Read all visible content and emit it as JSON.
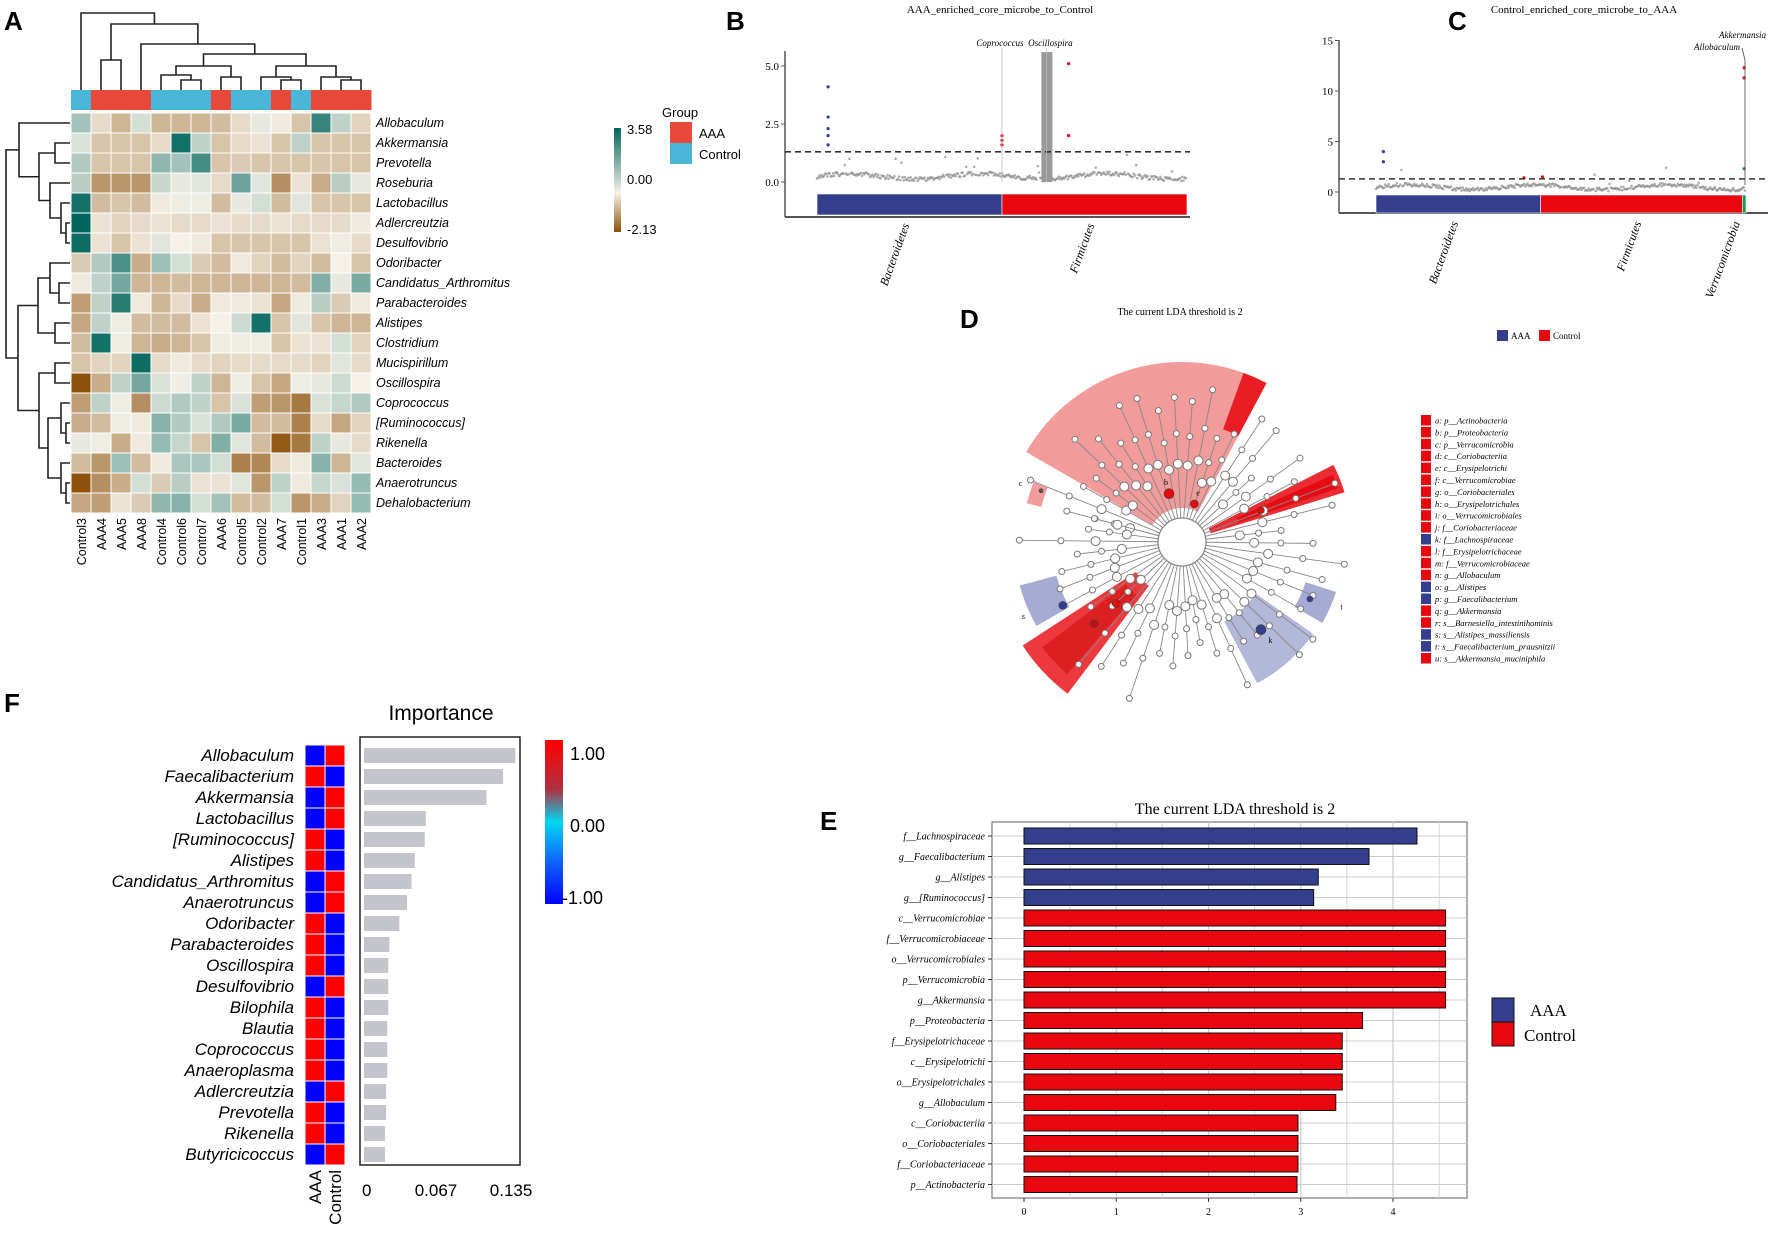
{
  "panel_letters": {
    "A": "A",
    "B": "B",
    "C": "C",
    "D": "D",
    "E": "E",
    "F": "F"
  },
  "chart_data": [
    {
      "type": "heatmap",
      "panel": "A",
      "samples": [
        "Control3",
        "AAA4",
        "AAA5",
        "AAA8",
        "Control4",
        "Control6",
        "Control7",
        "AAA6",
        "Control5",
        "Control2",
        "AAA7",
        "Control1",
        "AAA3",
        "AAA1",
        "AAA2"
      ],
      "sample_groups": [
        "Control",
        "AAA",
        "AAA",
        "AAA",
        "Control",
        "Control",
        "Control",
        "AAA",
        "Control",
        "Control",
        "AAA",
        "Control",
        "AAA",
        "AAA",
        "AAA"
      ],
      "taxa": [
        "Allobaculum",
        "Akkermansia",
        "Prevotella",
        "Roseburia",
        "Lactobacillus",
        "Adlercreutzia",
        "Desulfovibrio",
        "Odoribacter",
        "Candidatus_Arthromitus",
        "Parabacteroides",
        "Alistipes",
        "Clostridium",
        "Mucispirillum",
        "Oscillospira",
        "Coprococcus",
        "[Ruminococcus]",
        "Rikenella",
        "Bacteroides",
        "Anaerotruncus",
        "Dehalobacterium"
      ],
      "values": [
        [
          1.2,
          -0.3,
          -0.8,
          0.5,
          -0.8,
          -0.8,
          -0.8,
          -0.7,
          -0.3,
          0.2,
          -0.1,
          -0.6,
          2.8,
          0.8,
          -0.4
        ],
        [
          0.4,
          -0.6,
          -0.6,
          -0.6,
          -0.3,
          3.3,
          0.8,
          -0.6,
          -0.3,
          -0.2,
          -0.6,
          0.8,
          -0.6,
          -0.6,
          -0.6
        ],
        [
          1.0,
          -0.6,
          -0.6,
          -0.6,
          1.5,
          1.2,
          2.6,
          -0.6,
          -0.5,
          -0.6,
          -0.6,
          -0.6,
          -0.6,
          -0.6,
          -0.6
        ],
        [
          0.9,
          -1.2,
          -1.2,
          -1.2,
          0.7,
          0.2,
          0.3,
          -0.3,
          2.0,
          0.3,
          -1.3,
          -0.2,
          -0.9,
          0.9,
          0.2
        ],
        [
          3.3,
          -0.7,
          -0.6,
          -0.7,
          -0.1,
          0.1,
          0.1,
          -0.7,
          0.2,
          0.5,
          -0.7,
          0.3,
          -0.6,
          -0.6,
          -0.6
        ],
        [
          3.58,
          -0.2,
          -0.4,
          -0.3,
          -0.2,
          -0.3,
          -0.3,
          -0.2,
          -0.3,
          -0.3,
          -0.2,
          -0.3,
          -0.3,
          -0.3,
          -0.1
        ],
        [
          3.4,
          -0.2,
          -0.6,
          -0.2,
          0.3,
          0.0,
          -0.1,
          -0.6,
          -0.6,
          -0.6,
          -0.6,
          -0.6,
          -0.2,
          0.1,
          -0.3
        ],
        [
          -0.5,
          1.0,
          2.5,
          -0.9,
          1.3,
          0.5,
          -0.5,
          -0.7,
          -0.1,
          -0.4,
          -0.7,
          -0.4,
          -0.7,
          0.0,
          -0.6
        ],
        [
          -0.1,
          0.8,
          1.9,
          -0.8,
          -0.8,
          -0.7,
          -0.8,
          -0.8,
          -0.8,
          -0.8,
          -0.8,
          -0.7,
          1.7,
          0.2,
          1.8
        ],
        [
          -1.1,
          0.8,
          3.0,
          -0.1,
          -0.8,
          -0.3,
          -0.9,
          -0.1,
          -0.1,
          -0.2,
          -1.0,
          -0.1,
          0.9,
          -0.5,
          -0.1
        ],
        [
          -1.0,
          0.8,
          0.1,
          -0.7,
          -0.7,
          -0.7,
          -0.2,
          0.0,
          0.6,
          3.3,
          -0.6,
          0.3,
          -0.6,
          -0.8,
          -0.8
        ],
        [
          -0.7,
          3.3,
          0.1,
          -0.8,
          -0.9,
          -0.8,
          -0.6,
          0.1,
          0.1,
          0.1,
          -0.6,
          -0.2,
          -0.2,
          0.5,
          -0.4
        ],
        [
          -0.6,
          -0.4,
          -0.4,
          3.4,
          -0.3,
          -0.1,
          -0.3,
          -0.4,
          -0.3,
          -0.3,
          -0.3,
          -0.3,
          -0.4,
          0.3,
          -0.3
        ],
        [
          -2.13,
          -0.9,
          0.8,
          1.9,
          0.4,
          0.1,
          0.8,
          -0.8,
          0.1,
          -0.6,
          -1.0,
          0.1,
          0.2,
          0.6,
          0.0
        ],
        [
          -1.1,
          0.8,
          0.1,
          -1.3,
          0.6,
          1.0,
          0.8,
          -0.6,
          0.4,
          -1.1,
          -1.2,
          -1.6,
          0.4,
          0.7,
          1.0
        ],
        [
          -0.9,
          -0.7,
          0.1,
          -0.1,
          1.6,
          1.0,
          0.4,
          1.0,
          1.8,
          -0.7,
          -0.7,
          -1.5,
          -0.3,
          -1.0,
          -0.4
        ],
        [
          0.2,
          0.1,
          -0.9,
          -0.1,
          1.4,
          0.7,
          -0.6,
          1.7,
          0.3,
          -0.7,
          -2.0,
          -1.6,
          0.8,
          0.2,
          -0.3
        ],
        [
          -0.7,
          -1.2,
          1.3,
          -0.7,
          -0.1,
          1.1,
          1.1,
          0.5,
          -1.5,
          -1.4,
          -0.3,
          -0.1,
          1.6,
          -0.8,
          0.3
        ],
        [
          -2.13,
          -1.3,
          -0.9,
          0.5,
          -0.5,
          0.9,
          -0.2,
          -0.2,
          0.3,
          -1.2,
          0.8,
          -0.1,
          0.7,
          0.4,
          1.4
        ],
        [
          -1.0,
          -1.1,
          -0.2,
          -0.5,
          1.5,
          1.6,
          0.5,
          1.2,
          -0.7,
          -0.7,
          0.5,
          -1.2,
          -0.9,
          -0.4,
          1.4
        ]
      ],
      "scale": {
        "min": -2.13,
        "mid": 0.0,
        "max": 3.58,
        "labels": [
          "3.58",
          "0.00",
          "-2.13"
        ],
        "colors": {
          "low": "#8c510a",
          "mid": "#f5f1e8",
          "high": "#01665e"
        }
      },
      "group_legend": {
        "title": "Group",
        "items": [
          {
            "label": "AAA",
            "color": "#e8493a"
          },
          {
            "label": "Control",
            "color": "#4bb7d8"
          }
        ]
      }
    },
    {
      "type": "scatter",
      "panel": "B",
      "title": "AAA_enriched_core_microbe_to_Control",
      "ylim": [
        0,
        6.5
      ],
      "yticks": [
        "0.0",
        "2.5",
        "5.0"
      ],
      "ytick_values": [
        0,
        2.5,
        5.0
      ],
      "threshold": 1.3,
      "phyla": [
        {
          "name": "Bacteroidetes",
          "share": 0.5,
          "color": "#333e8c"
        },
        {
          "name": "Firmicutes",
          "share": 0.5,
          "color": "#e8070e"
        }
      ],
      "annotations": [
        {
          "label": "Coprococcus",
          "rank": 0.5
        },
        {
          "label": "Oscillospira",
          "rank": 0.62
        }
      ],
      "highlight_points": [
        {
          "rank": 0.03,
          "y": 4.1,
          "color": "#333e8c"
        },
        {
          "rank": 0.03,
          "y": 2.8,
          "color": "#333e8c"
        },
        {
          "rank": 0.03,
          "y": 2.3,
          "color": "#333e8c"
        },
        {
          "rank": 0.03,
          "y": 2.0,
          "color": "#333e8c"
        },
        {
          "rank": 0.03,
          "y": 1.6,
          "color": "#333e8c"
        },
        {
          "rank": 0.5,
          "y": 2.0,
          "color": "#e8070e"
        },
        {
          "rank": 0.5,
          "y": 1.8,
          "color": "#e8070e"
        },
        {
          "rank": 0.5,
          "y": 1.6,
          "color": "#e8070e"
        },
        {
          "rank": 0.68,
          "y": 5.1,
          "color": "#e8070e"
        },
        {
          "rank": 0.68,
          "y": 2.0,
          "color": "#e8070e"
        }
      ],
      "highlight_bar": {
        "rank": 0.62,
        "y": 5.6,
        "color": "#999999"
      }
    },
    {
      "type": "scatter",
      "panel": "C",
      "title": "Control_enriched_core_microbe_to_AAA",
      "ylim": [
        -1.5,
        17
      ],
      "yticks": [
        "0",
        "5",
        "10",
        "15"
      ],
      "ytick_values": [
        0,
        5,
        10,
        15
      ],
      "threshold": 1.3,
      "phyla": [
        {
          "name": "Bacteroidetes",
          "share": 0.445,
          "color": "#333e8c"
        },
        {
          "name": "Firmicutes",
          "share": 0.545,
          "color": "#e8070e"
        },
        {
          "name": "Verrucomicrobia",
          "share": 0.01,
          "color": "#1a9850"
        }
      ],
      "annotations": [
        {
          "label": "Akkermansia",
          "rank": 0.995
        },
        {
          "label": "Allobaculum",
          "rank": 0.99
        }
      ],
      "highlight_points": [
        {
          "rank": 0.02,
          "y": 4.0,
          "color": "#333e8c"
        },
        {
          "rank": 0.02,
          "y": 3.0,
          "color": "#333e8c"
        },
        {
          "rank": 0.4,
          "y": 1.4,
          "color": "#e8070e"
        },
        {
          "rank": 0.45,
          "y": 1.5,
          "color": "#e8070e"
        },
        {
          "rank": 0.995,
          "y": 12.3,
          "color": "#e8070e"
        },
        {
          "rank": 0.995,
          "y": 11.3,
          "color": "#e8070e"
        },
        {
          "rank": 0.995,
          "y": 2.3,
          "color": "#1a9850"
        }
      ]
    },
    {
      "type": "cladogram",
      "panel": "D",
      "title": "The current LDA threshold is 2",
      "legend": [
        {
          "label": "AAA",
          "color": "#333e8c"
        },
        {
          "label": "Control",
          "color": "#e8070e"
        }
      ],
      "legend_items": [
        {
          "letter": "a",
          "text": "a: p__Actinobacteria",
          "group": "Control"
        },
        {
          "letter": "b",
          "text": "b: p__Proteobacteria",
          "group": "Control"
        },
        {
          "letter": "c",
          "text": "c: p__Verrucomicrobia",
          "group": "Control"
        },
        {
          "letter": "d",
          "text": "d: c__Coriobacteriia",
          "group": "Control"
        },
        {
          "letter": "e",
          "text": "e: c__Erysipelotrichi",
          "group": "Control"
        },
        {
          "letter": "f",
          "text": "f: c__Verrucomicrobiae",
          "group": "Control"
        },
        {
          "letter": "g",
          "text": "g: o__Coriobacteriales",
          "group": "Control"
        },
        {
          "letter": "h",
          "text": "h: o__Erysipelotrichales",
          "group": "Control"
        },
        {
          "letter": "i",
          "text": "i: o__Verrucomicrobiales",
          "group": "Control"
        },
        {
          "letter": "j",
          "text": "j: f__Coriobacteriaceae",
          "group": "Control"
        },
        {
          "letter": "k",
          "text": "k: f__Lachnospiraceae",
          "group": "AAA"
        },
        {
          "letter": "l",
          "text": "l: f__Erysipelotrichaceae",
          "group": "Control"
        },
        {
          "letter": "m",
          "text": "m: f__Verrucomicrobiaceae",
          "group": "Control"
        },
        {
          "letter": "n",
          "text": "n: g__Allobaculum",
          "group": "Control"
        },
        {
          "letter": "o",
          "text": "o: g__Alistipes",
          "group": "AAA"
        },
        {
          "letter": "p",
          "text": "p: g__Faecalibacterium",
          "group": "AAA"
        },
        {
          "letter": "q",
          "text": "q: g__Akkermansia",
          "group": "Control"
        },
        {
          "letter": "r",
          "text": "r: s__Barnesiella_intestinihominis",
          "group": "Control"
        },
        {
          "letter": "s",
          "text": "s: s__Alistipes_massiliensis",
          "group": "AAA"
        },
        {
          "letter": "t",
          "text": "t: s__Faecalibacterium_prausnitzii",
          "group": "AAA"
        },
        {
          "letter": "u",
          "text": "u: s__Akkermansia_muciniphila",
          "group": "Control"
        }
      ]
    },
    {
      "type": "bar",
      "panel": "E",
      "orientation": "horizontal",
      "title": "The current LDA threshold is 2",
      "xlim": [
        0,
        4.75
      ],
      "xticks": [
        "0",
        "1",
        "2",
        "3",
        "4"
      ],
      "xtick_values": [
        0,
        1,
        2,
        3,
        4
      ],
      "categories": [
        "f__Lachnospiraceae",
        "g__Faecalibacterium",
        "g__Alistipes",
        "g__[Ruminococcus]",
        "c__Verrucomicrobiae",
        "f__Verrucomicrobiaceae",
        "o__Verrucomicrobiales",
        "p__Verrucomicrobia",
        "g__Akkermansia",
        "p__Proteobacteria",
        "f__Erysipelotrichaceae",
        "c__Erysipelotrichi",
        "o__Erysipelotrichales",
        "g__Allobaculum",
        "c__Coriobacteriia",
        "o__Coriobacteriales",
        "f__Coriobacteriaceae",
        "p__Actinobacteria"
      ],
      "values": [
        4.26,
        3.74,
        3.19,
        3.14,
        4.57,
        4.57,
        4.57,
        4.57,
        4.57,
        3.67,
        3.45,
        3.45,
        3.45,
        3.38,
        2.97,
        2.97,
        2.97,
        2.96
      ],
      "groups": [
        "AAA",
        "AAA",
        "AAA",
        "AAA",
        "Control",
        "Control",
        "Control",
        "Control",
        "Control",
        "Control",
        "Control",
        "Control",
        "Control",
        "Control",
        "Control",
        "Control",
        "Control",
        "Control"
      ],
      "legend": [
        {
          "label": "AAA",
          "color": "#333e8c"
        },
        {
          "label": "Control",
          "color": "#e8070e"
        }
      ]
    },
    {
      "type": "bar",
      "panel": "F",
      "orientation": "horizontal",
      "title": "Importance",
      "categories": [
        "Allobaculum",
        "Faecalibacterium",
        "Akkermansia",
        "Lactobacillus",
        "[Ruminococcus]",
        "Alistipes",
        "Candidatus_Arthromitus",
        "Anaerotruncus",
        "Odoribacter",
        "Parabacteroides",
        "Oscillospira",
        "Desulfovibrio",
        "Bilophila",
        "Blautia",
        "Coprococcus",
        "Anaeroplasma",
        "Adlercreutzia",
        "Prevotella",
        "Rikenella",
        "Butyricicoccus"
      ],
      "values": [
        0.137,
        0.126,
        0.111,
        0.056,
        0.055,
        0.046,
        0.043,
        0.039,
        0.032,
        0.023,
        0.022,
        0.022,
        0.022,
        0.021,
        0.021,
        0.021,
        0.02,
        0.02,
        0.019,
        0.019
      ],
      "xticks": [
        "0",
        "0.067",
        "0.135"
      ],
      "xtick_values": [
        0,
        0.067,
        0.135
      ],
      "heatmap_columns": [
        "AAA",
        "Control"
      ],
      "heatmap_values": [
        [
          -1,
          1
        ],
        [
          1,
          -1
        ],
        [
          -1,
          1
        ],
        [
          -1,
          1
        ],
        [
          1,
          -1
        ],
        [
          1,
          -1
        ],
        [
          -1,
          1
        ],
        [
          -1,
          1
        ],
        [
          1,
          -1
        ],
        [
          1,
          -1
        ],
        [
          1,
          -1
        ],
        [
          -1,
          1
        ],
        [
          1,
          -1
        ],
        [
          1,
          -1
        ],
        [
          1,
          -1
        ],
        [
          1,
          -1
        ],
        [
          -1,
          1
        ],
        [
          1,
          -1
        ],
        [
          1,
          -1
        ],
        [
          -1,
          1
        ]
      ],
      "colorbar": {
        "labels": [
          "1.00",
          "0.00",
          "-1.00"
        ],
        "colors": {
          "high": "#ff0000",
          "mid": "#00d8f0",
          "low": "#0000ff"
        }
      },
      "bar_color": "#c4c4cc"
    }
  ]
}
